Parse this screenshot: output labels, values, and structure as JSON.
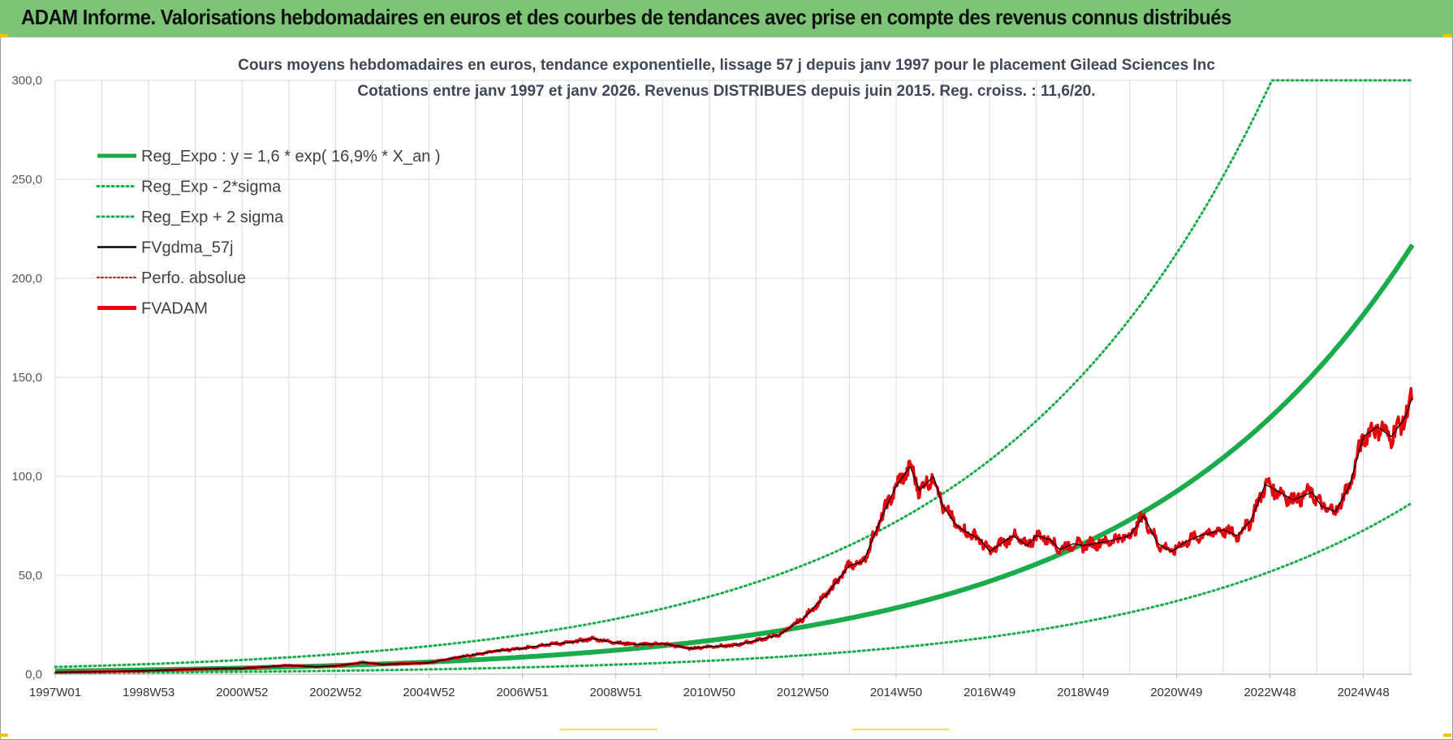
{
  "header": {
    "title": "ADAM Informe. Valorisations hebdomadaires en euros et des courbes de tendances avec prise en compte des revenus connus distribués"
  },
  "colors": {
    "banner": "#7cc576",
    "reg_expo": "#1aab4a",
    "band": "#1aab4a",
    "gdma": "#000000",
    "adam": "#e8000b",
    "perfo": "#e8000b",
    "grid": "#d9d9d9"
  },
  "chart_data": {
    "type": "line",
    "title_line1": "Cours moyens hebdomadaires en euros, tendance exponentielle, lissage 57 j depuis janv 1997  pour le placement Gilead Sciences Inc",
    "title_line2": "Cotations entre janv 1997 et janv 2026. Revenus DISTRIBUES depuis juin 2015. Reg. croiss. : 11,6/20.",
    "xlabel": "",
    "ylabel": "",
    "ylim": [
      0,
      300
    ],
    "y_ticks": [
      "0,0",
      "50,0",
      "100,0",
      "150,0",
      "200,0",
      "250,0",
      "300,0"
    ],
    "x_range": [
      1997.0,
      2026.05
    ],
    "x_ticks": [
      {
        "label": "1997W01",
        "x": 1997.0
      },
      {
        "label": "1998W53",
        "x": 1999.0
      },
      {
        "label": "2000W52",
        "x": 2001.0
      },
      {
        "label": "2002W52",
        "x": 2003.0
      },
      {
        "label": "2004W52",
        "x": 2005.0
      },
      {
        "label": "2006W51",
        "x": 2007.0
      },
      {
        "label": "2008W51",
        "x": 2009.0
      },
      {
        "label": "2010W50",
        "x": 2011.0
      },
      {
        "label": "2012W50",
        "x": 2013.0
      },
      {
        "label": "2014W50",
        "x": 2015.0
      },
      {
        "label": "2016W49",
        "x": 2017.0
      },
      {
        "label": "2018W49",
        "x": 2019.0
      },
      {
        "label": "2020W49",
        "x": 2021.0
      },
      {
        "label": "2022W48",
        "x": 2023.0
      },
      {
        "label": "2024W48",
        "x": 2025.0
      }
    ],
    "grid": true,
    "legend_position": "top-left",
    "trend": {
      "a": 1.6,
      "rate": 0.169,
      "start": 1997.0,
      "upper_factor": 2.3,
      "lower_factor": 0.4,
      "cap": 300
    },
    "series": [
      {
        "name": "Reg_Expo : y = 1,6 * exp( 16,9% *  X_an )",
        "style": "thick"
      },
      {
        "name": "Reg_Exp - 2*sigma",
        "style": "dotted"
      },
      {
        "name": "Reg_Exp + 2 sigma",
        "style": "dotted"
      },
      {
        "name": "FVgdma_57j",
        "style": "thin"
      },
      {
        "name": "Perfo. absolue",
        "style": "dotted"
      },
      {
        "name": "FVADAM",
        "style": "thick"
      }
    ],
    "price": {
      "x": [
        1997.0,
        1998.0,
        1999.0,
        2000.0,
        2001.0,
        2002.0,
        2002.6,
        2003.0,
        2003.6,
        2004.0,
        2005.0,
        2005.6,
        2006.0,
        2006.5,
        2007.0,
        2007.5,
        2008.0,
        2008.5,
        2009.0,
        2009.5,
        2010.0,
        2010.6,
        2011.0,
        2011.5,
        2012.0,
        2012.5,
        2013.0,
        2013.5,
        2014.0,
        2014.3,
        2014.7,
        2015.0,
        2015.3,
        2015.5,
        2015.8,
        2016.0,
        2016.3,
        2016.5,
        2016.8,
        2017.0,
        2017.5,
        2017.8,
        2018.0,
        2018.3,
        2018.5,
        2018.8,
        2019.0,
        2019.5,
        2020.0,
        2020.3,
        2020.6,
        2020.9,
        2021.2,
        2021.5,
        2022.0,
        2022.3,
        2022.6,
        2022.9,
        2023.2,
        2023.5,
        2023.9,
        2024.1,
        2024.4,
        2024.7,
        2025.0,
        2025.3,
        2025.6,
        2025.9,
        2026.05
      ],
      "y": [
        1.0,
        1.3,
        1.8,
        2.6,
        3.0,
        4.5,
        3.8,
        4.2,
        6.0,
        5.0,
        5.8,
        8.5,
        10.0,
        12.0,
        13.0,
        15.0,
        16.0,
        18.0,
        16.0,
        15.0,
        15.5,
        13.0,
        14.0,
        14.5,
        17.0,
        20.0,
        28.0,
        40.0,
        55.0,
        57.0,
        80.0,
        95.0,
        105.0,
        93.0,
        100.0,
        85.0,
        75.0,
        72.0,
        68.0,
        62.0,
        70.0,
        65.0,
        70.0,
        68.0,
        63.0,
        66.0,
        65.0,
        67.0,
        70.0,
        80.0,
        66.0,
        62.0,
        67.0,
        70.0,
        73.0,
        70.0,
        78.0,
        96.0,
        92.0,
        88.0,
        92.0,
        85.0,
        82.0,
        95.0,
        120.0,
        125.0,
        120.0,
        130.0,
        140.0
      ]
    }
  }
}
